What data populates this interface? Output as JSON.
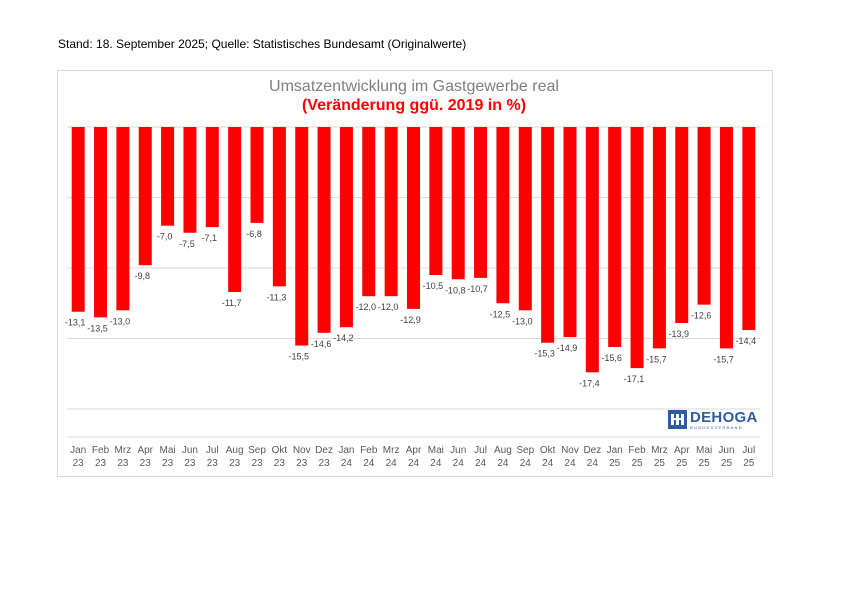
{
  "header": {
    "stand": "Stand: 18. September 2025; Quelle: Statistisches Bundesamt (Originalwerte)"
  },
  "logo": {
    "name": "DEHOGA",
    "subtitle": "BUNDESVERBAND",
    "icon": "dehoga-logo-icon",
    "color": "#2e5d9f"
  },
  "chart_data": {
    "type": "bar",
    "title": "Umsatzentwicklung im Gastgewerbe real",
    "subtitle": "(Veränderung ggü. 2019 in %)",
    "bar_color": "#ff0000",
    "grid": true,
    "ylim": [
      -20,
      0
    ],
    "categories": [
      {
        "month": "Jan",
        "year": "23"
      },
      {
        "month": "Feb",
        "year": "23"
      },
      {
        "month": "Mrz",
        "year": "23"
      },
      {
        "month": "Apr",
        "year": "23"
      },
      {
        "month": "Mai",
        "year": "23"
      },
      {
        "month": "Jun",
        "year": "23"
      },
      {
        "month": "Jul",
        "year": "23"
      },
      {
        "month": "Aug",
        "year": "23"
      },
      {
        "month": "Sep",
        "year": "23"
      },
      {
        "month": "Okt",
        "year": "23"
      },
      {
        "month": "Nov",
        "year": "23"
      },
      {
        "month": "Dez",
        "year": "23"
      },
      {
        "month": "Jan",
        "year": "24"
      },
      {
        "month": "Feb",
        "year": "24"
      },
      {
        "month": "Mrz",
        "year": "24"
      },
      {
        "month": "Apr",
        "year": "24"
      },
      {
        "month": "Mai",
        "year": "24"
      },
      {
        "month": "Jun",
        "year": "24"
      },
      {
        "month": "Jul",
        "year": "24"
      },
      {
        "month": "Aug",
        "year": "24"
      },
      {
        "month": "Sep",
        "year": "24"
      },
      {
        "month": "Okt",
        "year": "24"
      },
      {
        "month": "Nov",
        "year": "24"
      },
      {
        "month": "Dez",
        "year": "24"
      },
      {
        "month": "Jan",
        "year": "25"
      },
      {
        "month": "Feb",
        "year": "25"
      },
      {
        "month": "Mrz",
        "year": "25"
      },
      {
        "month": "Apr",
        "year": "25"
      },
      {
        "month": "Mai",
        "year": "25"
      },
      {
        "month": "Jun",
        "year": "25"
      },
      {
        "month": "Jul",
        "year": "25"
      }
    ],
    "values": [
      -13.1,
      -13.5,
      -13.0,
      -9.8,
      -7.0,
      -7.5,
      -7.1,
      -11.7,
      -6.8,
      -11.3,
      -15.5,
      -14.6,
      -14.2,
      -12.0,
      -12.0,
      -12.9,
      -10.5,
      -10.8,
      -10.7,
      -12.5,
      -13.0,
      -15.3,
      -14.9,
      -17.4,
      -15.6,
      -17.1,
      -15.7,
      -13.9,
      -12.6,
      -15.7,
      -14.4
    ],
    "labels": [
      "-13,1",
      "-13,5",
      "-13,0",
      "-9,8",
      "-7,0",
      "-7,5",
      "-7,1",
      "-11,7",
      "-6,8",
      "-11,3",
      "-15,5",
      "-14,6",
      "-14,2",
      "-12,0",
      "-12,0",
      "-12,9",
      "-10,5",
      "-10,8",
      "-10,7",
      "-12,5",
      "-13,0",
      "-15,3",
      "-14,9",
      "-17,4",
      "-15,6",
      "-17,1",
      "-15,7",
      "-13,9",
      "-12,6",
      "-15,7",
      "-14,4"
    ]
  }
}
